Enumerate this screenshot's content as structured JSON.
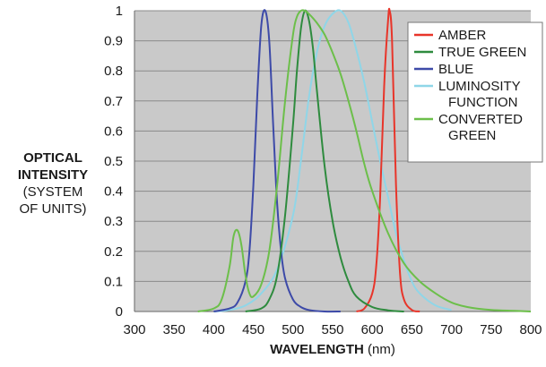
{
  "chart_data": {
    "type": "line",
    "xlabel_bold": "WAVELENGTH",
    "xlabel_unit": "(nm)",
    "ylabel_lines": [
      "OPTICAL",
      "INTENSITY",
      "(SYSTEM",
      "OF UNITS)"
    ],
    "xlim": [
      300,
      800
    ],
    "ylim": [
      0,
      1
    ],
    "x_ticks": [
      300,
      350,
      400,
      450,
      500,
      550,
      600,
      650,
      700,
      750,
      800
    ],
    "y_ticks": [
      0,
      0.1,
      0.2,
      0.3,
      0.4,
      0.5,
      0.6,
      0.7,
      0.8,
      0.9,
      1
    ],
    "grid": "horizontal",
    "legend_position": "top-right",
    "series": [
      {
        "name": "AMBER",
        "color": "#e8352a",
        "x": [
          580,
          590,
          600,
          605,
          610,
          615,
          620,
          622,
          625,
          630,
          635,
          640,
          650,
          660
        ],
        "y": [
          0,
          0.01,
          0.06,
          0.15,
          0.38,
          0.75,
          0.97,
          1.0,
          0.9,
          0.42,
          0.13,
          0.04,
          0.005,
          0
        ]
      },
      {
        "name": "TRUE GREEN",
        "color": "#2e8b3e",
        "x": [
          440,
          460,
          470,
          480,
          490,
          500,
          505,
          510,
          515,
          520,
          525,
          530,
          540,
          550,
          560,
          570,
          580,
          600,
          620,
          640
        ],
        "y": [
          0,
          0.01,
          0.04,
          0.12,
          0.32,
          0.62,
          0.8,
          0.94,
          1.0,
          0.97,
          0.88,
          0.74,
          0.48,
          0.3,
          0.18,
          0.1,
          0.05,
          0.015,
          0.004,
          0
        ]
      },
      {
        "name": "BLUE",
        "color": "#3d4aa8",
        "x": [
          400,
          420,
          430,
          440,
          445,
          450,
          455,
          460,
          465,
          470,
          475,
          480,
          485,
          490,
          500,
          510,
          520,
          540,
          560
        ],
        "y": [
          0,
          0.01,
          0.03,
          0.1,
          0.2,
          0.42,
          0.72,
          0.95,
          1.0,
          0.9,
          0.62,
          0.36,
          0.2,
          0.11,
          0.04,
          0.015,
          0.005,
          0,
          0
        ]
      },
      {
        "name": "LUMINOSITY FUNCTION",
        "color": "#8fd6e8",
        "x": [
          400,
          420,
          440,
          460,
          480,
          500,
          510,
          520,
          530,
          540,
          550,
          560,
          570,
          580,
          590,
          600,
          610,
          620,
          630,
          640,
          650,
          660,
          680,
          700
        ],
        "y": [
          0,
          0.005,
          0.02,
          0.06,
          0.14,
          0.32,
          0.5,
          0.71,
          0.86,
          0.95,
          0.99,
          1.0,
          0.96,
          0.87,
          0.76,
          0.63,
          0.5,
          0.38,
          0.26,
          0.17,
          0.1,
          0.06,
          0.02,
          0.005
        ]
      },
      {
        "name": "CONVERTED GREEN",
        "color": "#6cbf4a",
        "x": [
          380,
          400,
          410,
          420,
          425,
          430,
          435,
          440,
          445,
          450,
          460,
          470,
          480,
          490,
          500,
          505,
          510,
          515,
          520,
          530,
          540,
          550,
          560,
          570,
          580,
          590,
          600,
          620,
          640,
          660,
          680,
          700,
          720,
          750,
          780,
          800
        ],
        "y": [
          0,
          0.01,
          0.04,
          0.15,
          0.25,
          0.27,
          0.22,
          0.12,
          0.06,
          0.05,
          0.09,
          0.2,
          0.42,
          0.7,
          0.92,
          0.98,
          1.0,
          1.0,
          0.99,
          0.96,
          0.92,
          0.86,
          0.79,
          0.7,
          0.6,
          0.49,
          0.4,
          0.26,
          0.16,
          0.1,
          0.06,
          0.03,
          0.015,
          0.005,
          0.002,
          0
        ]
      }
    ],
    "legend": [
      {
        "lines": [
          "AMBER"
        ],
        "color": "#e8352a"
      },
      {
        "lines": [
          "TRUE GREEN"
        ],
        "color": "#2e8b3e"
      },
      {
        "lines": [
          "BLUE"
        ],
        "color": "#3d4aa8"
      },
      {
        "lines": [
          "LUMINOSITY",
          "FUNCTION"
        ],
        "color": "#8fd6e8"
      },
      {
        "lines": [
          "CONVERTED",
          "GREEN"
        ],
        "color": "#6cbf4a"
      }
    ],
    "colors": {
      "plot_background": "#c9c9c9",
      "gridline": "#8a8a8a",
      "axis": "#666666"
    }
  }
}
